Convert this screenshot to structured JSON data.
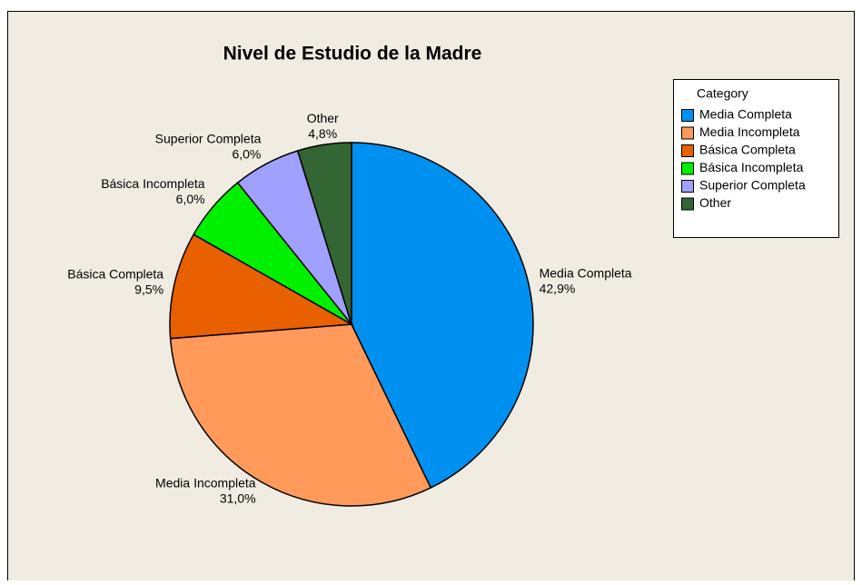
{
  "chart_data": {
    "type": "pie",
    "title": "Nivel de Estudio de la Madre",
    "legend_title": "Category",
    "categories": [
      "Media Completa",
      "Media Incompleta",
      "Básica Completa",
      "Básica Incompleta",
      "Superior Completa",
      "Other"
    ],
    "values": [
      42.9,
      31.0,
      9.5,
      6.0,
      6.0,
      4.8
    ],
    "value_labels": [
      "42,9%",
      "31,0%",
      "9,5%",
      "6,0%",
      "6,0%",
      "4,8%"
    ],
    "colors": [
      "#0090f0",
      "#ff9a5a",
      "#e86000",
      "#00f000",
      "#a0a0ff",
      "#336633"
    ],
    "legend": "upper right"
  }
}
